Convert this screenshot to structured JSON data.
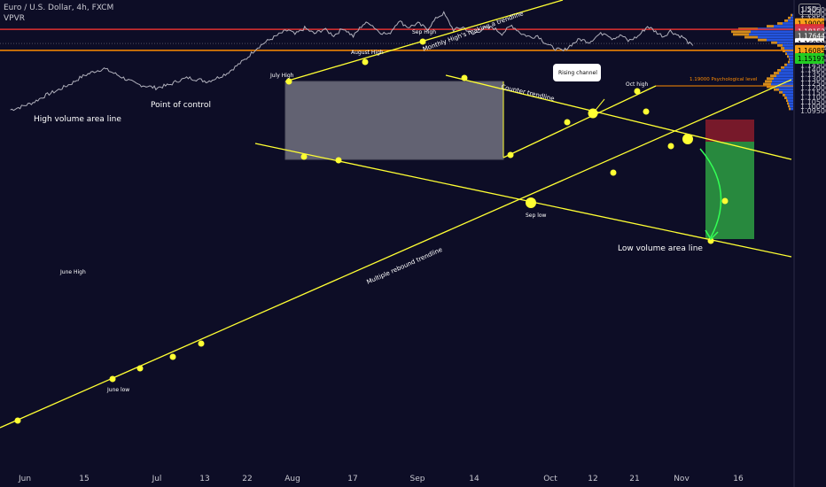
{
  "header": {
    "symbol_line": "Euro / U.S. Dollar, 4h, FXCM",
    "indicator": "VPVR",
    "currency_badge": "USD"
  },
  "colors": {
    "background": "#0d0d26",
    "trendline": "#ffff33",
    "poc_line": "#e03030",
    "support_line": "#ff8c00",
    "price": "#b0b0bc",
    "volume_up": "#2962ff",
    "volume_down": "#f7a21b",
    "target_box": "#2ea043",
    "stop_box": "#8b1c2c"
  },
  "chart_data": {
    "type": "line",
    "title": "Euro / U.S. Dollar, 4h, FXCM",
    "x_ticks": [
      "Jun",
      "15",
      "Jul",
      "13",
      "22",
      "Aug",
      "17",
      "Sep",
      "14",
      "Oct",
      "12",
      "21",
      "Nov",
      "16"
    ],
    "y_ticks": [
      "1.20500",
      "1.20000",
      "1.19500",
      "1.18500",
      "1.18000",
      "1.17500",
      "1.17000",
      "1.16500",
      "1.15500",
      "1.15000",
      "1.14500",
      "1.14000",
      "1.13500",
      "1.13000",
      "1.12500",
      "1.12000",
      "1.11500",
      "1.11000",
      "1.10500",
      "1.10000",
      "1.09500"
    ],
    "ylim": [
      1.094,
      1.213
    ],
    "price_labels": [
      {
        "value": "1.19000",
        "price": 1.19,
        "bg": "#f7a21b",
        "fg": "#000000"
      },
      {
        "value": "1.18364",
        "price": 1.18364,
        "bg": "#e03030",
        "fg": "#ffffff"
      },
      {
        "value": "1.18153",
        "price": 1.18153,
        "bg": "#d4384c",
        "fg": "#ffffff"
      },
      {
        "value": "1.17644",
        "price": 1.17644,
        "bg": "#5a5a5a",
        "fg": "#ffffff"
      },
      {
        "value": "1.16831",
        "price": 1.16831,
        "bg": "#ffffff",
        "fg": "#000000"
      },
      {
        "value": "02:39:44",
        "price": 1.1637,
        "bg": "#0d0d26",
        "fg": "#dddddd"
      },
      {
        "value": "1.16085",
        "price": 1.16085,
        "bg": "#f7a21b",
        "fg": "#000000"
      },
      {
        "value": "1.15197",
        "price": 1.15197,
        "bg": "#22cc22",
        "fg": "#000000"
      }
    ],
    "price_path": [
      [
        1,
        1.096
      ],
      [
        4,
        1.099
      ],
      [
        8,
        1.104
      ],
      [
        12,
        1.112
      ],
      [
        16,
        1.118
      ],
      [
        20,
        1.125
      ],
      [
        23,
        1.132
      ],
      [
        27,
        1.138
      ],
      [
        30,
        1.141
      ],
      [
        33,
        1.136
      ],
      [
        37,
        1.129
      ],
      [
        40,
        1.124
      ],
      [
        43,
        1.122
      ],
      [
        46,
        1.12
      ],
      [
        50,
        1.123
      ],
      [
        53,
        1.128
      ],
      [
        56,
        1.131
      ],
      [
        59,
        1.129
      ],
      [
        62,
        1.127
      ],
      [
        65,
        1.131
      ],
      [
        68,
        1.136
      ],
      [
        71,
        1.144
      ],
      [
        74,
        1.152
      ],
      [
        77,
        1.163
      ],
      [
        80,
        1.17
      ],
      [
        83,
        1.176
      ],
      [
        85,
        1.18
      ],
      [
        87,
        1.183
      ],
      [
        89,
        1.178
      ],
      [
        92,
        1.185
      ],
      [
        95,
        1.179
      ],
      [
        98,
        1.184
      ],
      [
        101,
        1.177
      ],
      [
        104,
        1.185
      ],
      [
        107,
        1.176
      ],
      [
        110,
        1.189
      ],
      [
        112,
        1.191
      ],
      [
        115,
        1.181
      ],
      [
        118,
        1.178
      ],
      [
        121,
        1.193
      ],
      [
        124,
        1.186
      ],
      [
        127,
        1.19
      ],
      [
        130,
        1.184
      ],
      [
        133,
        1.197
      ],
      [
        135,
        1.201
      ],
      [
        138,
        1.183
      ],
      [
        141,
        1.186
      ],
      [
        144,
        1.178
      ],
      [
        147,
        1.184
      ],
      [
        150,
        1.186
      ],
      [
        153,
        1.179
      ],
      [
        156,
        1.188
      ],
      [
        159,
        1.179
      ],
      [
        162,
        1.175
      ],
      [
        164,
        1.177
      ],
      [
        166,
        1.17
      ],
      [
        168,
        1.165
      ],
      [
        170,
        1.162
      ],
      [
        172,
        1.16
      ],
      [
        174,
        1.166
      ],
      [
        177,
        1.173
      ],
      [
        180,
        1.17
      ],
      [
        183,
        1.178
      ],
      [
        185,
        1.18
      ],
      [
        187,
        1.174
      ],
      [
        190,
        1.177
      ],
      [
        192,
        1.171
      ],
      [
        195,
        1.176
      ],
      [
        198,
        1.187
      ],
      [
        201,
        1.18
      ],
      [
        203,
        1.176
      ],
      [
        205,
        1.182
      ],
      [
        207,
        1.178
      ],
      [
        209,
        1.175
      ],
      [
        211,
        1.168
      ],
      [
        212,
        1.166
      ]
    ],
    "annotations": [
      "Point of control",
      "High volume area line",
      "Low volume area line",
      "June High",
      "June low",
      "July High",
      "August High",
      "Sep High",
      "Sep low",
      "Oct high",
      "Monthly High's making a trendline",
      "Counter trendline",
      "Multiple rebound trendline",
      "Rising channel",
      "1.19000 Psychological level"
    ],
    "horizontal_lines": [
      {
        "name": "Point of control",
        "price": 1.18364
      },
      {
        "name": "1.19000 Psychological level",
        "price": 1.19
      },
      {
        "name": "Support",
        "price": 1.16085
      }
    ],
    "volume_profile_note": "VPVR histogram on right edge"
  }
}
